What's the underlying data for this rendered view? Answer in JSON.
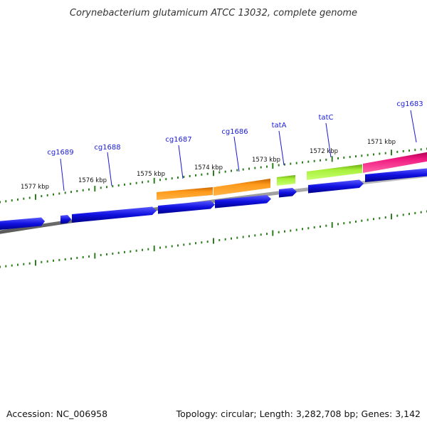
{
  "title": "Corynebacterium glutamicum ATCC 13032, complete genome",
  "footer": {
    "accession": "Accession: NC_006958",
    "topology": "Topology: circular; Length: 3,282,708 bp; Genes: 3,142"
  },
  "colors": {
    "backbone": "#8a8a8a",
    "tick": "#2e7d1e",
    "gene_label": "#1a1ad6",
    "reverse_gene": "#1010e0",
    "orange_feature": "#ff8c00",
    "lime_feature": "#99ee22",
    "magenta_feature": "#ee1177"
  },
  "scale_labels": [
    "1577 kbp",
    "1576 kbp",
    "1575 kbp",
    "1574 kbp",
    "1573 kbp",
    "1572 kbp",
    "1571 kbp"
  ],
  "gene_labels": [
    "cg1689",
    "cg1688",
    "cg1687",
    "cg1686",
    "tatA",
    "tatC",
    "cg1683"
  ]
}
